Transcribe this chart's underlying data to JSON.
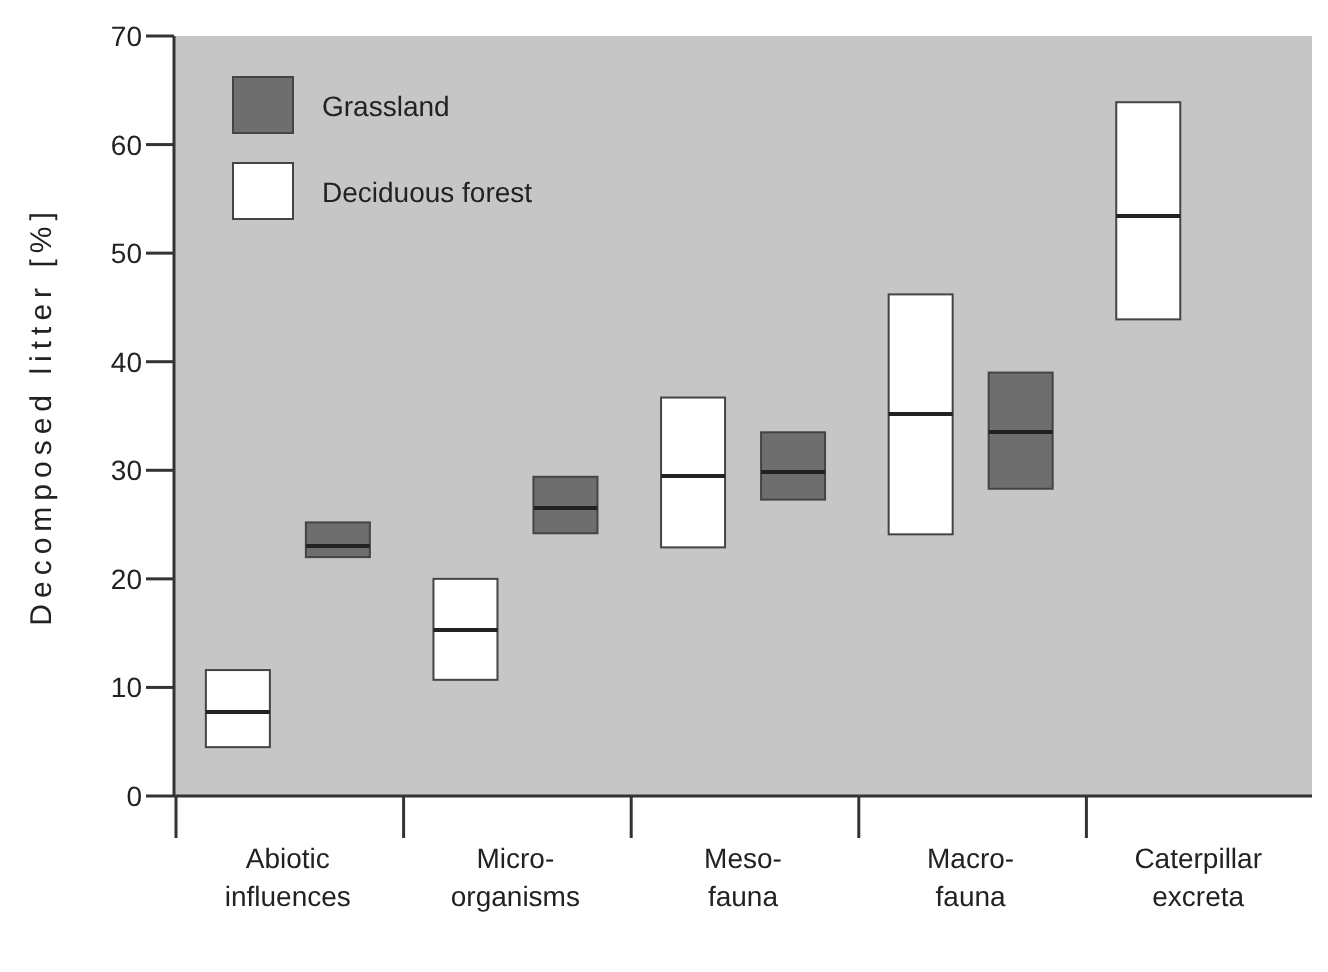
{
  "chart_data": {
    "type": "box",
    "ylabel": "Decomposed litter [%]",
    "categories": [
      "Abiotic influences",
      "Micro-organisms",
      "Meso-fauna",
      "Macro-fauna",
      "Caterpillar excreta"
    ],
    "ylim": [
      0,
      70
    ],
    "yticks": [
      0,
      10,
      20,
      30,
      40,
      50,
      60,
      70
    ],
    "grid": false,
    "legend": "top left",
    "series": [
      {
        "name": "Deciduous forest",
        "color": "#ffffff",
        "boxes": [
          {
            "low": 4.5,
            "q1": 4.5,
            "median": 7.7,
            "q3": 11.6,
            "high": 11.6
          },
          {
            "low": 10.7,
            "q1": 10.7,
            "median": 15.3,
            "q3": 20.0,
            "high": 20.0
          },
          {
            "low": 22.9,
            "q1": 22.9,
            "median": 29.4,
            "q3": 36.7,
            "high": 36.7
          },
          {
            "low": 24.1,
            "q1": 24.1,
            "median": 35.1,
            "q3": 46.2,
            "high": 46.2
          },
          {
            "low": 43.9,
            "q1": 43.9,
            "median": 53.5,
            "q3": 63.9,
            "high": 63.9
          }
        ]
      },
      {
        "name": "Grassland",
        "color": "#6e6e6e",
        "boxes": [
          {
            "low": 22.0,
            "q1": 22.0,
            "median": 23.1,
            "q3": 25.2,
            "high": 25.2
          },
          {
            "low": 24.2,
            "q1": 24.2,
            "median": 26.5,
            "q3": 29.4,
            "high": 29.4
          },
          {
            "low": 27.3,
            "q1": 27.3,
            "median": 29.8,
            "q3": 33.5,
            "high": 33.5
          },
          {
            "low": 28.3,
            "q1": 28.3,
            "median": 33.5,
            "q3": 39.0,
            "high": 39.0
          },
          null
        ]
      }
    ]
  }
}
